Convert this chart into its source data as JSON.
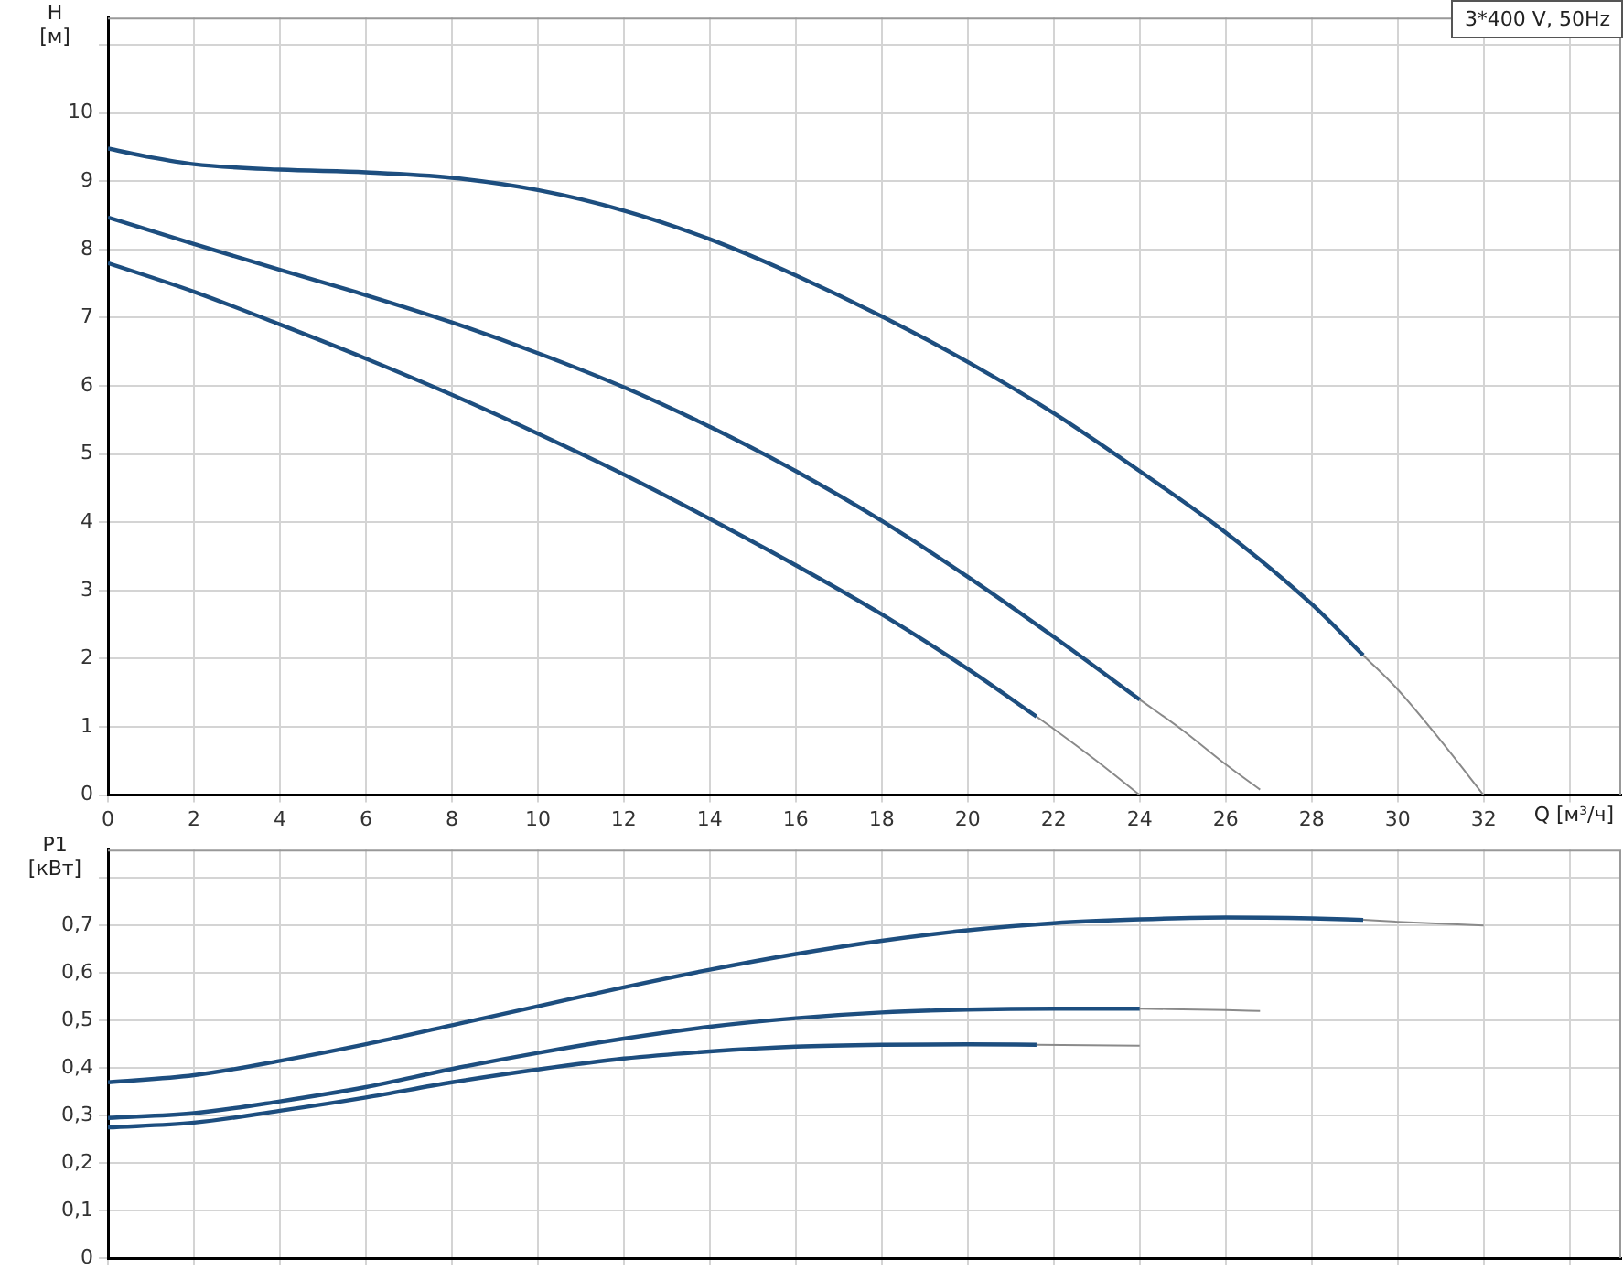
{
  "chart_data": [
    {
      "type": "line",
      "ylabel": "H [м]",
      "xlabel": "Q [м³/ч]",
      "annotations": [
        "3*400 V, 50Hz"
      ],
      "xlim": [
        0,
        35.2
      ],
      "xticks": [
        0,
        2,
        4,
        6,
        8,
        10,
        12,
        14,
        16,
        18,
        20,
        22,
        24,
        26,
        28,
        30,
        32,
        {
          "value": 34,
          "label": null
        }
      ],
      "ylim": [
        0,
        11.4
      ],
      "yticks": [
        0,
        1,
        2,
        3,
        4,
        5,
        6,
        7,
        8,
        9,
        10,
        {
          "value": 11,
          "label": null
        }
      ],
      "grid": true,
      "legend": false,
      "marker": "none",
      "line_style": "solid",
      "series": [
        {
          "color": "#1d4e7f",
          "x": [
            0,
            1,
            2,
            4,
            6,
            8,
            10,
            12,
            14,
            16,
            18,
            20,
            22,
            24,
            26,
            28,
            29.2
          ],
          "values": [
            9.48,
            9.35,
            9.25,
            9.17,
            9.13,
            9.05,
            8.87,
            8.57,
            8.15,
            7.62,
            7.02,
            6.35,
            5.6,
            4.75,
            3.85,
            2.8,
            2.05
          ]
        },
        {
          "color": "#8a8a8a",
          "x": [
            29.2,
            30,
            31,
            32
          ],
          "values": [
            2.05,
            1.55,
            0.8,
            0
          ]
        },
        {
          "color": "#1d4e7f",
          "x": [
            0,
            2,
            4,
            6,
            8,
            10,
            12,
            14,
            16,
            18,
            20,
            22,
            24
          ],
          "values": [
            8.47,
            8.08,
            7.7,
            7.33,
            6.93,
            6.48,
            5.98,
            5.4,
            4.75,
            4.02,
            3.2,
            2.32,
            1.4
          ]
        },
        {
          "color": "#8a8a8a",
          "x": [
            24,
            25,
            26,
            26.8
          ],
          "values": [
            1.4,
            0.95,
            0.45,
            0.08
          ]
        },
        {
          "color": "#1d4e7f",
          "x": [
            0,
            2,
            4,
            6,
            8,
            10,
            12,
            14,
            16,
            18,
            20,
            21.6
          ],
          "values": [
            7.8,
            7.38,
            6.9,
            6.4,
            5.87,
            5.3,
            4.7,
            4.05,
            3.37,
            2.65,
            1.85,
            1.15
          ]
        },
        {
          "color": "#8a8a8a",
          "x": [
            21.6,
            22,
            23,
            24
          ],
          "values": [
            1.15,
            0.97,
            0.5,
            0
          ]
        }
      ]
    },
    {
      "type": "line",
      "ylabel": "P1 [кВт]",
      "tick_labels": "y",
      "xlim": [
        0,
        35.2
      ],
      "xticks": [
        0,
        2,
        4,
        6,
        8,
        10,
        12,
        14,
        16,
        18,
        20,
        22,
        24,
        26,
        28,
        30,
        32,
        34
      ],
      "ylim": [
        0,
        0.86
      ],
      "yticks": [
        {
          "value": 0,
          "label": "0"
        },
        {
          "value": 0.1,
          "label": "0,1"
        },
        {
          "value": 0.2,
          "label": "0,2"
        },
        {
          "value": 0.3,
          "label": "0,3"
        },
        {
          "value": 0.4,
          "label": "0,4"
        },
        {
          "value": 0.5,
          "label": "0,5"
        },
        {
          "value": 0.6,
          "label": "0,6"
        },
        {
          "value": 0.7,
          "label": "0,7"
        },
        {
          "value": 0.8,
          "label": null
        }
      ],
      "grid": true,
      "legend": false,
      "marker": "none",
      "line_style": "solid",
      "series": [
        {
          "color": "#1d4e7f",
          "x": [
            0,
            2,
            4,
            6,
            8,
            10,
            12,
            14,
            16,
            18,
            20,
            22,
            24,
            26,
            28,
            29.2
          ],
          "values": [
            0.37,
            0.385,
            0.415,
            0.45,
            0.49,
            0.53,
            0.57,
            0.607,
            0.64,
            0.668,
            0.69,
            0.705,
            0.713,
            0.717,
            0.715,
            0.712
          ]
        },
        {
          "color": "#8a8a8a",
          "x": [
            29.2,
            30,
            32
          ],
          "values": [
            0.712,
            0.708,
            0.7
          ]
        },
        {
          "color": "#1d4e7f",
          "x": [
            0,
            2,
            4,
            6,
            8,
            10,
            12,
            14,
            16,
            18,
            20,
            22,
            24
          ],
          "values": [
            0.295,
            0.305,
            0.33,
            0.36,
            0.398,
            0.432,
            0.462,
            0.487,
            0.505,
            0.517,
            0.523,
            0.525,
            0.525
          ]
        },
        {
          "color": "#8a8a8a",
          "x": [
            24,
            26,
            26.8
          ],
          "values": [
            0.525,
            0.522,
            0.52
          ]
        },
        {
          "color": "#1d4e7f",
          "x": [
            0,
            2,
            4,
            6,
            8,
            10,
            12,
            14,
            16,
            18,
            20,
            21.6
          ],
          "values": [
            0.275,
            0.285,
            0.31,
            0.338,
            0.37,
            0.397,
            0.42,
            0.435,
            0.445,
            0.449,
            0.45,
            0.449
          ]
        },
        {
          "color": "#8a8a8a",
          "x": [
            21.6,
            24
          ],
          "values": [
            0.449,
            0.447
          ]
        }
      ]
    }
  ]
}
